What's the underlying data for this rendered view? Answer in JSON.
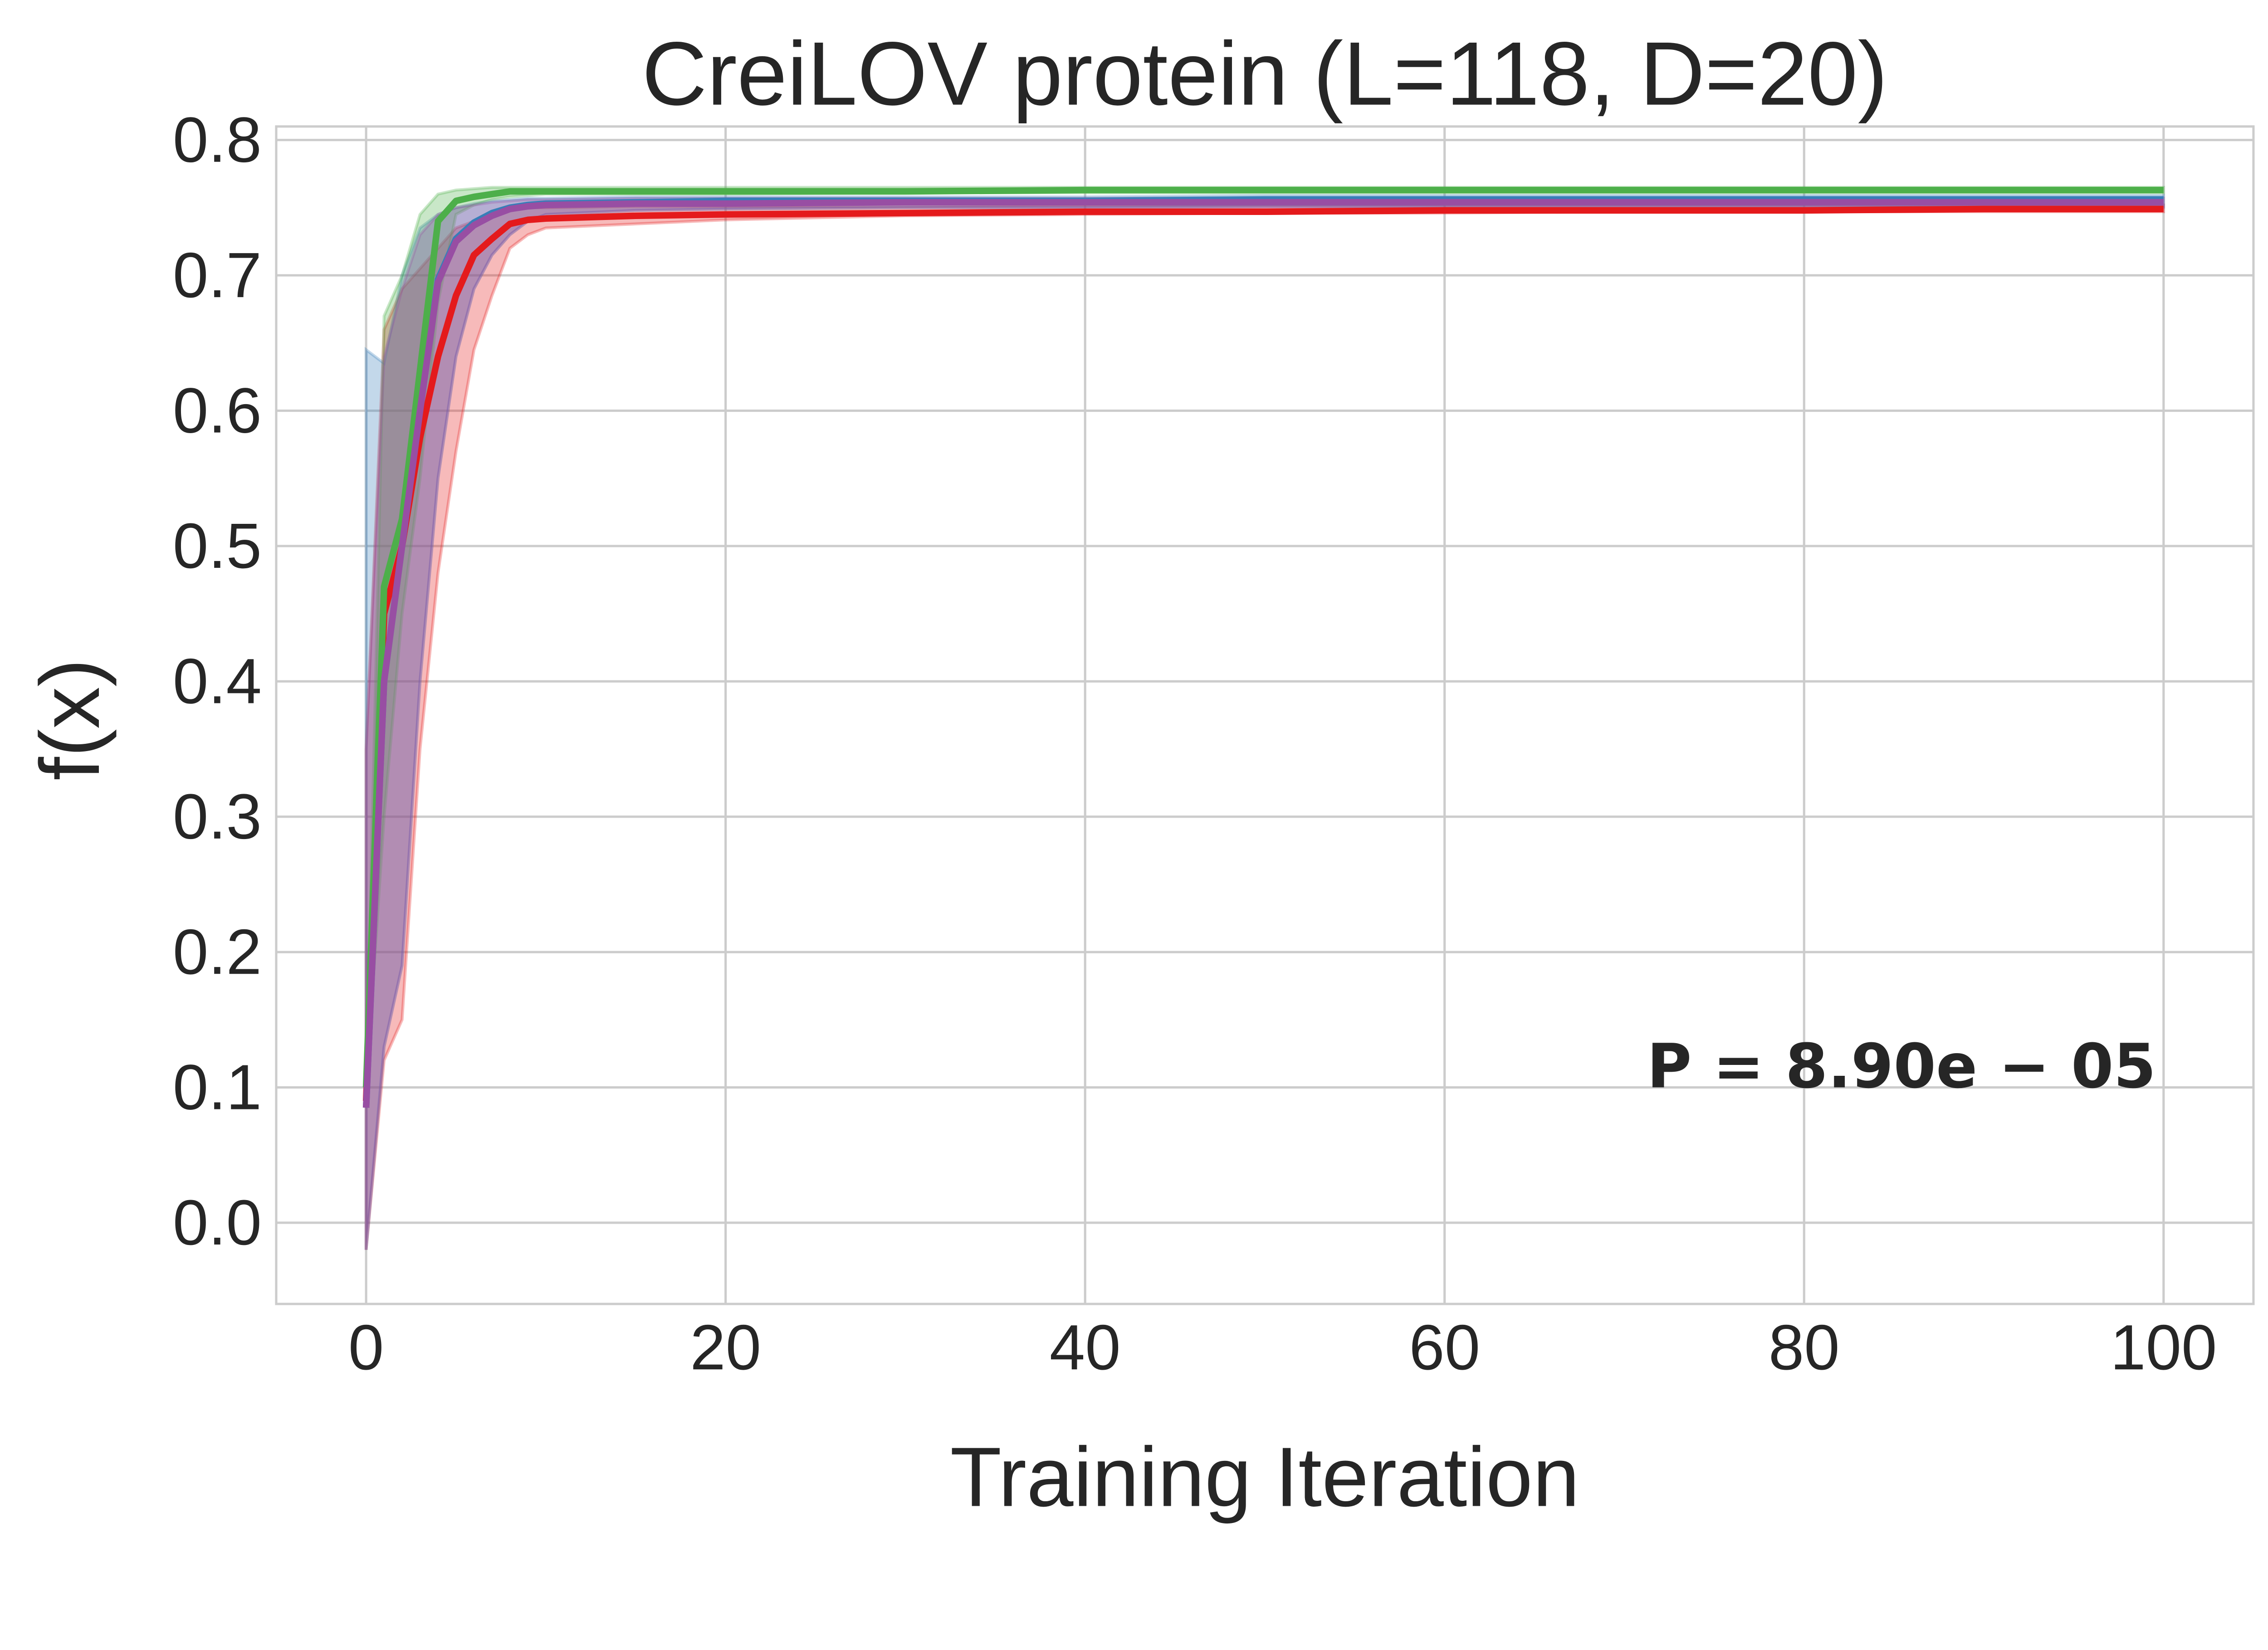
{
  "chart_data": {
    "type": "line",
    "title": "CreiLOV protein (L=118, D=20)",
    "xlabel": "Training Iteration",
    "ylabel": "f(x)",
    "xlim": [
      -5,
      105
    ],
    "ylim": [
      -0.06,
      0.81
    ],
    "xticks": [
      "0",
      "20",
      "40",
      "60",
      "80",
      "100"
    ],
    "xtick_values": [
      0,
      20,
      40,
      60,
      80,
      100
    ],
    "yticks": [
      "0.0",
      "0.1",
      "0.2",
      "0.3",
      "0.4",
      "0.5",
      "0.6",
      "0.7",
      "0.8"
    ],
    "ytick_values": [
      0,
      0.1,
      0.2,
      0.3,
      0.4,
      0.5,
      0.6,
      0.7,
      0.8
    ],
    "grid": true,
    "annotation": "P = 8.90e − 05",
    "x": [
      0,
      1,
      2,
      3,
      4,
      5,
      6,
      7,
      8,
      9,
      10,
      15,
      20,
      30,
      40,
      50,
      60,
      70,
      80,
      90,
      100
    ],
    "series": [
      {
        "color": "#e41a1c",
        "values": [
          0.09,
          0.45,
          0.5,
          0.58,
          0.64,
          0.685,
          0.715,
          0.727,
          0.738,
          0.741,
          0.742,
          0.744,
          0.745,
          0.746,
          0.747,
          0.747,
          0.748,
          0.748,
          0.748,
          0.749,
          0.749
        ],
        "lower": [
          -0.02,
          0.12,
          0.15,
          0.35,
          0.48,
          0.57,
          0.645,
          0.685,
          0.72,
          0.73,
          0.735,
          0.738,
          0.741,
          0.744,
          0.745,
          0.746,
          0.746,
          0.747,
          0.747,
          0.747,
          0.747
        ],
        "upper": [
          0.35,
          0.66,
          0.69,
          0.705,
          0.72,
          0.735,
          0.74,
          0.745,
          0.748,
          0.75,
          0.75,
          0.751,
          0.751,
          0.751,
          0.752,
          0.752,
          0.752,
          0.752,
          0.752,
          0.752,
          0.752
        ]
      },
      {
        "color": "#377eb8",
        "values": [
          0.085,
          0.4,
          0.5,
          0.6,
          0.697,
          0.727,
          0.739,
          0.746,
          0.75,
          0.752,
          0.753,
          0.754,
          0.755,
          0.755,
          0.755,
          0.756,
          0.756,
          0.756,
          0.756,
          0.756,
          0.756
        ],
        "lower": [
          -0.02,
          0.13,
          0.19,
          0.4,
          0.55,
          0.64,
          0.69,
          0.715,
          0.73,
          0.74,
          0.745,
          0.748,
          0.749,
          0.75,
          0.75,
          0.751,
          0.751,
          0.751,
          0.751,
          0.751,
          0.751
        ],
        "upper": [
          0.645,
          0.635,
          0.7,
          0.735,
          0.745,
          0.75,
          0.753,
          0.755,
          0.756,
          0.757,
          0.757,
          0.758,
          0.758,
          0.758,
          0.758,
          0.759,
          0.759,
          0.759,
          0.759,
          0.759,
          0.759
        ]
      },
      {
        "color": "#4daf4a",
        "values": [
          0.1,
          0.47,
          0.52,
          0.63,
          0.74,
          0.755,
          0.758,
          0.76,
          0.762,
          0.762,
          0.762,
          0.762,
          0.762,
          0.762,
          0.763,
          0.763,
          0.763,
          0.763,
          0.763,
          0.763,
          0.763
        ],
        "lower": [
          0.1,
          0.3,
          0.45,
          0.55,
          0.68,
          0.745,
          0.752,
          0.756,
          0.758,
          0.759,
          0.76,
          0.76,
          0.76,
          0.761,
          0.761,
          0.761,
          0.761,
          0.761,
          0.761,
          0.761,
          0.761
        ],
        "upper": [
          0.1,
          0.67,
          0.7,
          0.745,
          0.76,
          0.763,
          0.764,
          0.765,
          0.765,
          0.765,
          0.765,
          0.765,
          0.765,
          0.765,
          0.765,
          0.765,
          0.765,
          0.765,
          0.765,
          0.765,
          0.765
        ]
      },
      {
        "color": "#984ea3",
        "values": [
          0.085,
          0.4,
          0.5,
          0.6,
          0.695,
          0.725,
          0.737,
          0.744,
          0.749,
          0.751,
          0.752,
          0.753,
          0.753,
          0.754,
          0.754,
          0.754,
          0.754,
          0.754,
          0.754,
          0.754,
          0.754
        ],
        "lower": [
          -0.02,
          0.13,
          0.19,
          0.4,
          0.55,
          0.64,
          0.69,
          0.715,
          0.73,
          0.74,
          0.745,
          0.748,
          0.749,
          0.75,
          0.75,
          0.75,
          0.75,
          0.75,
          0.75,
          0.75,
          0.75
        ],
        "upper": [
          0.35,
          0.64,
          0.69,
          0.73,
          0.745,
          0.75,
          0.752,
          0.754,
          0.755,
          0.756,
          0.756,
          0.757,
          0.757,
          0.757,
          0.757,
          0.757,
          0.757,
          0.757,
          0.757,
          0.757,
          0.757
        ]
      }
    ]
  }
}
